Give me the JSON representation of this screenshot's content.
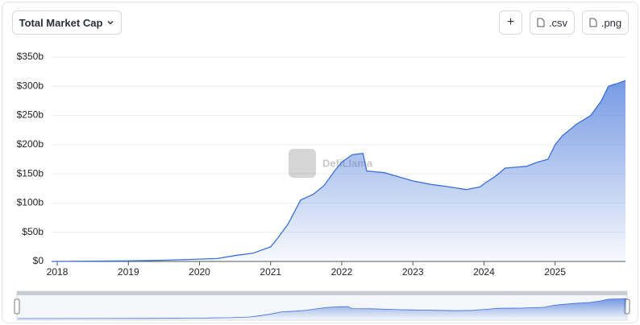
{
  "toolbar": {
    "dropdown": "Total Market Cap",
    "buttons": [
      "+",
      ".csv",
      ".png"
    ]
  },
  "watermark": "DefiLlama",
  "chart_data": {
    "type": "area",
    "color": "#3b6fd8",
    "x": [
      2017.92,
      2019,
      2019.5,
      2020,
      2020.25,
      2020.5,
      2020.75,
      2021,
      2021.1,
      2021.25,
      2021.42,
      2021.6,
      2021.75,
      2021.9,
      2022,
      2022.15,
      2022.3,
      2022.35,
      2022.6,
      2022.8,
      2023,
      2023.25,
      2023.5,
      2023.75,
      2023.95,
      2024,
      2024.15,
      2024.3,
      2024.6,
      2024.75,
      2024.9,
      2025,
      2025.1,
      2025.3,
      2025.5,
      2025.65,
      2025.75,
      2025.82,
      2025.88,
      2025.95,
      2025.99
    ],
    "values": [
      0,
      1,
      2,
      4,
      5,
      10,
      14,
      25,
      40,
      65,
      105,
      115,
      130,
      155,
      170,
      183,
      185,
      155,
      152,
      145,
      138,
      132,
      128,
      123,
      128,
      133,
      145,
      160,
      163,
      170,
      175,
      200,
      215,
      235,
      250,
      275,
      300,
      303,
      305,
      308,
      310
    ],
    "xlim": [
      2017.92,
      2025.99
    ],
    "xticks": [
      2018,
      2019,
      2020,
      2021,
      2022,
      2023,
      2024,
      2025
    ],
    "ylim": [
      0,
      350
    ],
    "yticks": [
      {
        "value": 0,
        "label": "$0"
      },
      {
        "value": 50,
        "label": "$50b"
      },
      {
        "value": 100,
        "label": "$100b"
      },
      {
        "value": 150,
        "label": "$150b"
      },
      {
        "value": 200,
        "label": "$200b"
      },
      {
        "value": 250,
        "label": "$250b"
      },
      {
        "value": 300,
        "label": "$300b"
      },
      {
        "value": 350,
        "label": "$350b"
      }
    ],
    "grid": true
  }
}
